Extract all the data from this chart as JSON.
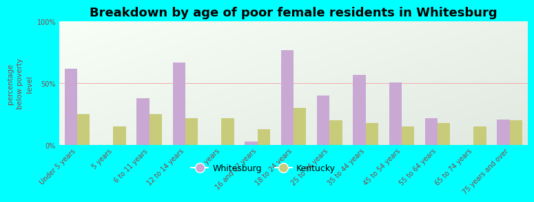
{
  "title": "Breakdown by age of poor female residents in Whitesburg",
  "ylabel": "percentage\nbelow poverty\nlevel",
  "categories": [
    "Under 5 years",
    "5 years",
    "6 to 11 years",
    "12 to 14 years",
    "15 years",
    "16 and 17 years",
    "18 to 24 years",
    "25 to 34 years",
    "35 to 44 years",
    "45 to 54 years",
    "55 to 64 years",
    "65 to 74 years",
    "75 years and over"
  ],
  "whitesburg": [
    62,
    0,
    38,
    67,
    0,
    3,
    77,
    40,
    57,
    51,
    22,
    0,
    21
  ],
  "kentucky": [
    25,
    15,
    25,
    22,
    22,
    13,
    30,
    20,
    18,
    15,
    18,
    15,
    20
  ],
  "whitesburg_color": "#c9a8d4",
  "kentucky_color": "#c8cc7a",
  "bg_color": "#00ffff",
  "ylim": [
    0,
    100
  ],
  "bar_width": 0.35,
  "title_fontsize": 13,
  "ylabel_fontsize": 7.5,
  "tick_fontsize": 7,
  "legend_fontsize": 9,
  "ytick_labels": [
    "0%",
    "50%",
    "100%"
  ],
  "ytick_vals": [
    0,
    50,
    100
  ],
  "label_color": "#884444",
  "ylabel_color": "#884444"
}
